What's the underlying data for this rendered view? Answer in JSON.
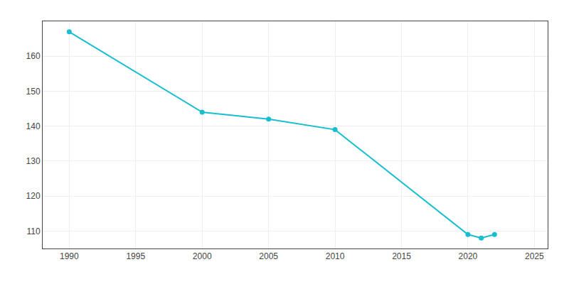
{
  "chart_data": {
    "type": "line",
    "x": [
      1990,
      2000,
      2005,
      2010,
      2020,
      2021,
      2022
    ],
    "values": [
      167,
      144,
      142,
      139,
      109,
      108,
      109
    ],
    "color": "#17BECF",
    "marker": "circle",
    "xlim": [
      1988,
      2026
    ],
    "ylim": [
      105,
      170
    ],
    "xticks": [
      1990,
      1995,
      2000,
      2005,
      2010,
      2015,
      2020,
      2025
    ],
    "yticks": [
      110,
      120,
      130,
      140,
      150,
      160
    ],
    "grid": true
  }
}
